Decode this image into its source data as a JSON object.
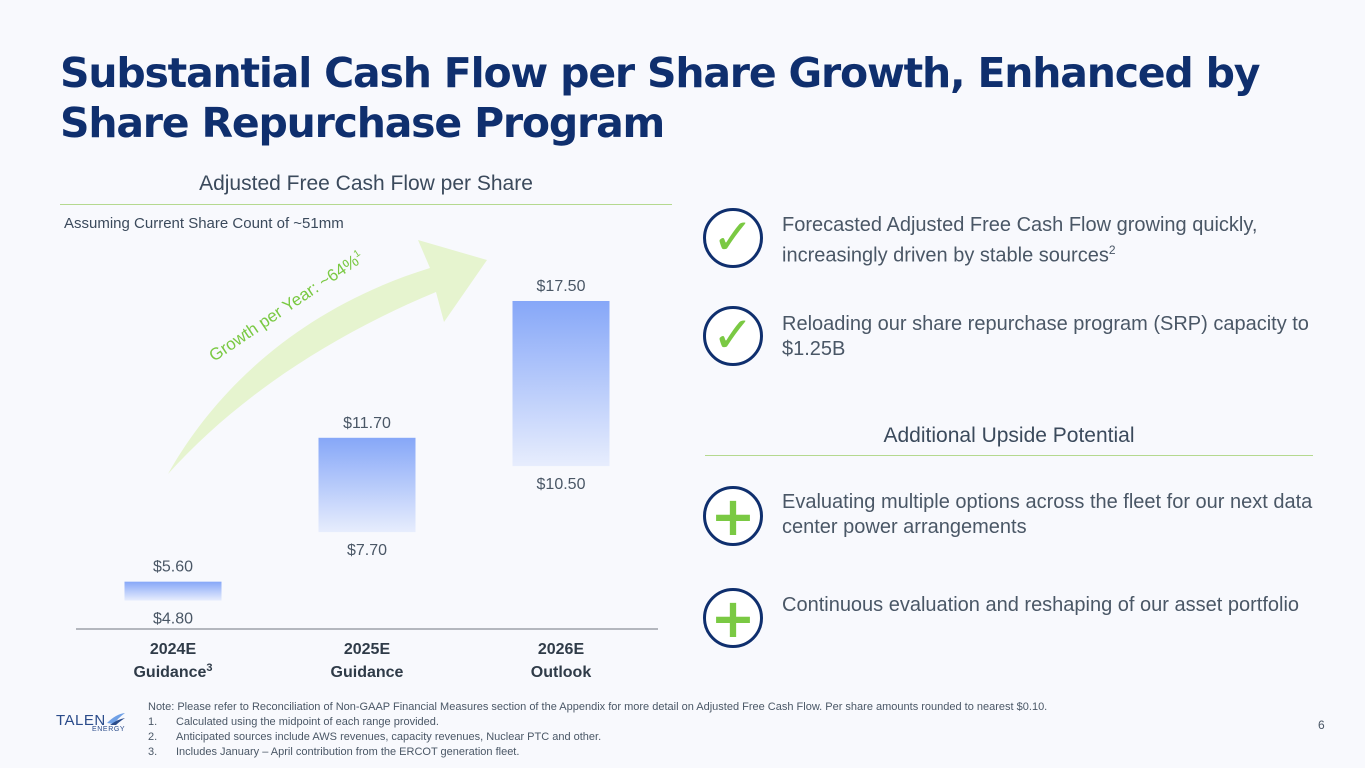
{
  "title": "Substantial Cash Flow per Share Growth, Enhanced by Share Repurchase Program",
  "chart_data": {
    "type": "bar",
    "subtype": "floating-range",
    "title": "Adjusted Free Cash Flow per Share",
    "subtitle": "Assuming Current Share Count of ~51mm",
    "categories": [
      {
        "line1": "2024E",
        "line2": "Guidance",
        "footnote": "3"
      },
      {
        "line1": "2025E",
        "line2": "Guidance",
        "footnote": ""
      },
      {
        "line1": "2026E",
        "line2": "Outlook",
        "footnote": ""
      }
    ],
    "low": [
      4.8,
      7.7,
      10.5
    ],
    "high": [
      5.6,
      11.7,
      17.5
    ],
    "low_labels": [
      "$4.80",
      "$7.70",
      "$10.50"
    ],
    "high_labels": [
      "$5.60",
      "$11.70",
      "$17.50"
    ],
    "ylim": [
      3.5,
      18.5
    ],
    "annotation": {
      "text": "Growth per Year: ~64%",
      "footnote": "1"
    },
    "colors": {
      "bar_top": "#86a7f8",
      "bar_bottom": "#e7edfd",
      "arrow": "#e6f4cf",
      "axis": "#8a9098"
    }
  },
  "bullets": [
    {
      "icon": "check-icon",
      "glyph": "✓",
      "text": "Forecasted Adjusted Free Cash Flow growing quickly, increasingly driven by stable sources",
      "footnote": "2"
    },
    {
      "icon": "check-icon",
      "glyph": "✓",
      "text": "Reloading our share repurchase program (SRP) capacity to $1.25B",
      "footnote": ""
    }
  ],
  "upside": {
    "title": "Additional Upside Potential",
    "items": [
      {
        "icon": "plus-icon",
        "glyph": "+",
        "text": "Evaluating multiple options across the fleet for our next data center power arrangements"
      },
      {
        "icon": "plus-icon",
        "glyph": "+",
        "text": "Continuous evaluation and reshaping of our asset portfolio"
      }
    ]
  },
  "notes": {
    "intro": "Note: Please refer to Reconciliation of Non-GAAP Financial Measures section of the Appendix for more detail on Adjusted Free Cash Flow. Per share amounts rounded to nearest $0.10.",
    "items": [
      {
        "num": "1.",
        "text": "Calculated using the midpoint of each range provided."
      },
      {
        "num": "2.",
        "text": "Anticipated sources include AWS revenues, capacity revenues, Nuclear PTC and other."
      },
      {
        "num": "3.",
        "text": "Includes January – April contribution from the ERCOT generation fleet."
      }
    ]
  },
  "logo": {
    "name": "TALEN",
    "sub": "ENERGY"
  },
  "page_number": "6"
}
